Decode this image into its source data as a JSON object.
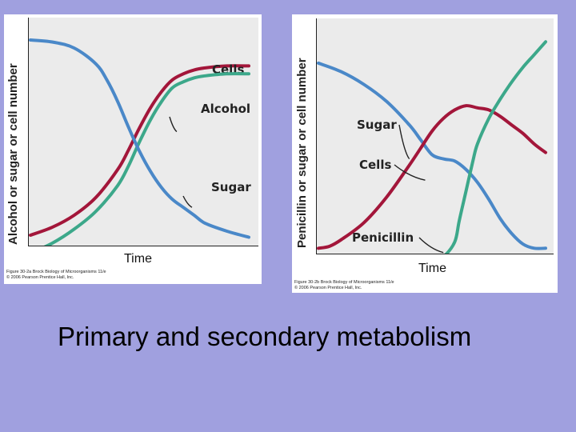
{
  "caption": "Primary and secondary metabolism",
  "chart_data": [
    {
      "type": "line",
      "panel": "left",
      "ylabel": "Alcohol or sugar or cell number",
      "xlabel": "Time",
      "xlim": [
        0,
        100
      ],
      "ylim": [
        0,
        100
      ],
      "credit": [
        "Figure 30-2a Brock Biology of Microorganisms 11/e",
        "© 2006 Pearson Prentice Hall, Inc."
      ],
      "series": [
        {
          "name": "Cells",
          "color": "#a3163a",
          "label": "Cells",
          "x": [
            0,
            10,
            20,
            30,
            40,
            45,
            50,
            55,
            60,
            65,
            70,
            75,
            80,
            90,
            100
          ],
          "y": [
            2,
            6,
            12,
            21,
            35,
            45,
            56,
            66,
            74,
            80,
            83,
            85,
            86,
            87,
            87
          ]
        },
        {
          "name": "Alcohol",
          "color": "#3ca88a",
          "label": "Alcohol",
          "x": [
            0,
            10,
            20,
            30,
            40,
            45,
            50,
            55,
            60,
            65,
            70,
            75,
            80,
            90,
            100
          ],
          "y": [
            -7,
            -2,
            5,
            14,
            27,
            37,
            49,
            60,
            69,
            76,
            79,
            81,
            82,
            83,
            83
          ]
        },
        {
          "name": "Sugar",
          "color": "#4a88c8",
          "label": "Sugar",
          "x": [
            0,
            10,
            20,
            30,
            35,
            40,
            45,
            50,
            55,
            60,
            65,
            70,
            75,
            80,
            90,
            100
          ],
          "y": [
            100,
            99,
            96,
            88,
            80,
            69,
            56,
            44,
            34,
            26,
            20,
            16,
            12,
            8,
            4,
            1
          ]
        }
      ]
    },
    {
      "type": "line",
      "panel": "right",
      "ylabel": "Penicillin or sugar or cell number",
      "xlabel": "Time",
      "xlim": [
        0,
        100
      ],
      "ylim": [
        0,
        100
      ],
      "credit": [
        "Figure 30-2b Brock Biology of Microorganisms 11/e",
        "© 2006 Pearson Prentice Hall, Inc."
      ],
      "series": [
        {
          "name": "Sugar",
          "color": "#4a88c8",
          "label": "Sugar",
          "x": [
            0,
            10,
            20,
            30,
            40,
            45,
            50,
            55,
            60,
            65,
            70,
            75,
            80,
            85,
            90,
            95,
            100
          ],
          "y": [
            88,
            84,
            78,
            70,
            59,
            52,
            45,
            43,
            42,
            38,
            32,
            24,
            15,
            8,
            3,
            1,
            1
          ]
        },
        {
          "name": "Cells",
          "color": "#a3163a",
          "label": "Cells",
          "x": [
            0,
            5,
            10,
            20,
            30,
            40,
            45,
            50,
            55,
            60,
            65,
            70,
            75,
            80,
            85,
            90,
            95,
            100
          ],
          "y": [
            1,
            2,
            5,
            13,
            25,
            40,
            48,
            56,
            62,
            66,
            68,
            67,
            66,
            63,
            59,
            55,
            50,
            46
          ]
        },
        {
          "name": "Penicillin",
          "color": "#3ca88a",
          "label": "Penicillin",
          "x": [
            50,
            55,
            60,
            62,
            65,
            68,
            70,
            75,
            80,
            85,
            90,
            95,
            100
          ],
          "y": [
            -5,
            -3,
            4,
            14,
            28,
            42,
            50,
            62,
            71,
            79,
            86,
            92,
            98
          ]
        }
      ]
    }
  ]
}
